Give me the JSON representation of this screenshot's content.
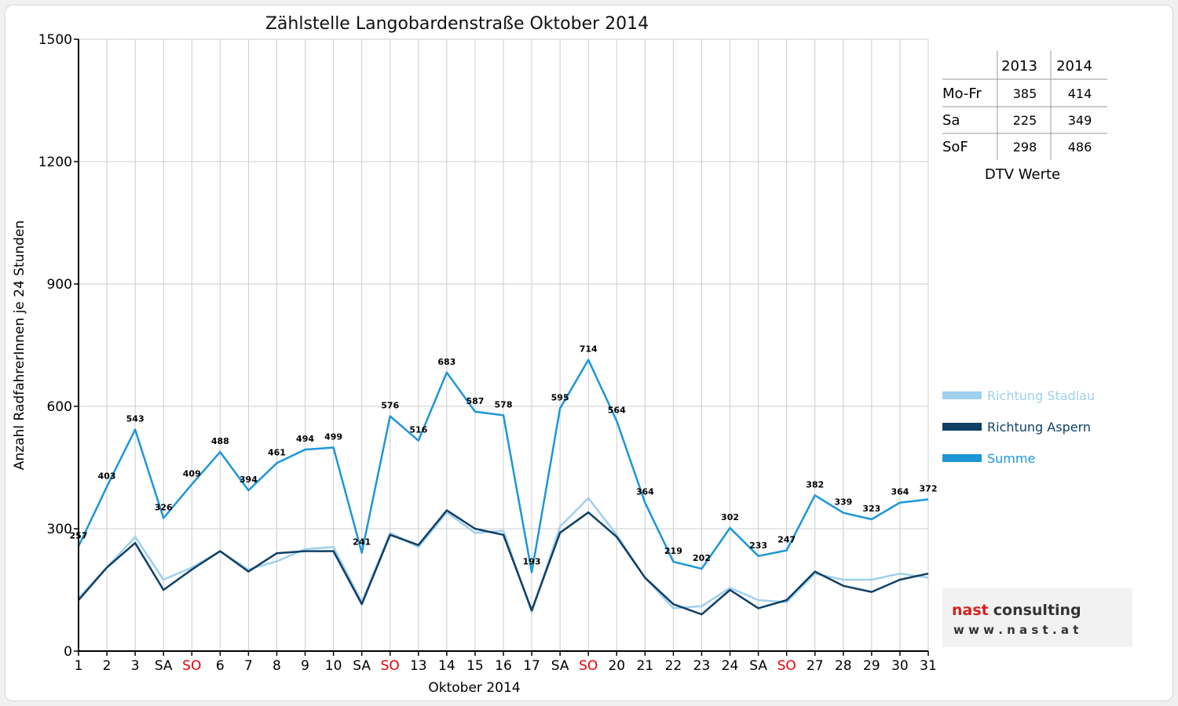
{
  "chart_data": {
    "type": "line",
    "title": "Zählstelle Langobardenstraße Oktober 2014",
    "xlabel": "Oktober 2014",
    "ylabel": "Anzahl RadfahrerInnen je 24 Stunden",
    "ylim": [
      0,
      1500
    ],
    "yticks": [
      "0",
      "300",
      "600",
      "900",
      "1200",
      "1500"
    ],
    "grid": true,
    "legend_position": "right",
    "categories": [
      "1",
      "2",
      "3",
      "SA",
      "SO",
      "6",
      "7",
      "8",
      "9",
      "10",
      "SA",
      "SO",
      "13",
      "14",
      "15",
      "16",
      "17",
      "SA",
      "SO",
      "20",
      "21",
      "22",
      "23",
      "24",
      "SA",
      "SO",
      "27",
      "28",
      "29",
      "30",
      "31"
    ],
    "highlight_categories": [
      "SO"
    ],
    "series": [
      {
        "name": "Richtung Stadlau",
        "color": "#9fd0ee",
        "label_values": false,
        "values": [
          130,
          205,
          280,
          175,
          205,
          245,
          200,
          220,
          250,
          255,
          120,
          290,
          255,
          340,
          290,
          295,
          95,
          305,
          375,
          285,
          180,
          105,
          110,
          155,
          125,
          120,
          190,
          175,
          175,
          190,
          180
        ]
      },
      {
        "name": "Richtung Aspern",
        "color": "#0e3f66",
        "label_values": false,
        "values": [
          125,
          205,
          265,
          150,
          200,
          245,
          195,
          240,
          245,
          245,
          115,
          285,
          260,
          345,
          300,
          285,
          100,
          290,
          340,
          280,
          180,
          115,
          90,
          150,
          105,
          125,
          195,
          160,
          145,
          175,
          190
        ]
      },
      {
        "name": "Summe",
        "color": "#1d96d8",
        "label_values": true,
        "values": [
          257,
          403,
          543,
          326,
          409,
          488,
          394,
          461,
          494,
          499,
          241,
          576,
          516,
          683,
          587,
          578,
          193,
          595,
          714,
          564,
          364,
          219,
          202,
          302,
          233,
          247,
          382,
          339,
          323,
          364,
          372
        ]
      }
    ],
    "data_label_text": [
      "257",
      "403",
      "543",
      "326",
      "409",
      "488",
      "394",
      "461",
      "494",
      "499",
      "241",
      "576",
      "516",
      "683",
      "587",
      "578",
      "193",
      "595",
      "714",
      "564",
      "364",
      "219",
      "202",
      "302",
      "233",
      "247",
      "382",
      "339",
      "323",
      "364",
      "372"
    ]
  },
  "dtv_table": {
    "columns": [
      "",
      "2013",
      "2014"
    ],
    "rows": [
      {
        "label": "Mo-Fr",
        "v2013": "385",
        "v2014": "414"
      },
      {
        "label": "Sa",
        "v2013": "225",
        "v2014": "349"
      },
      {
        "label": "SoF",
        "v2013": "298",
        "v2014": "486"
      }
    ],
    "caption": "DTV Werte"
  },
  "logo": {
    "name_part1": "nast",
    "name_part2": "consulting",
    "url": "w w w . n a s t . a t"
  },
  "colors": {
    "grid": "#cccccc",
    "axis": "#000000",
    "highlight_tick": "#e00000"
  }
}
